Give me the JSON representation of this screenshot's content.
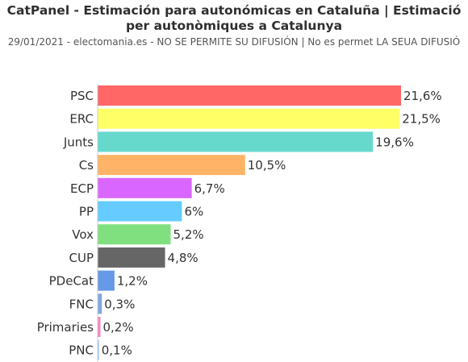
{
  "title": "CatPanel - Estimación para autonómicas en Cataluña | Estimació per autonòmiques a Catalunya",
  "subtitle": "29/01/2021 - electomania.es - NO SE PERMITE SU DIFUSIÓN | No es permet LA SEUA DIFUSIÓ",
  "chart_data": {
    "type": "bar",
    "orientation": "horizontal",
    "title": "CatPanel - Estimación para autonómicas en Cataluña | Estimació per autonòmiques a Catalunya",
    "categories": [
      "PSC",
      "ERC",
      "Junts",
      "Cs",
      "ECP",
      "PP",
      "Vox",
      "CUP",
      "PDeCat",
      "FNC",
      "Primaries",
      "PNC"
    ],
    "values": [
      21.6,
      21.5,
      19.6,
      10.5,
      6.7,
      6,
      5.2,
      4.8,
      1.2,
      0.3,
      0.2,
      0.1
    ],
    "value_labels": [
      "21,6%",
      "21,5%",
      "19,6%",
      "10,5%",
      "6,7%",
      "6%",
      "5,2%",
      "4,8%",
      "1,2%",
      "0,3%",
      "0,2%",
      "0,1%"
    ],
    "colors": [
      "#ff6666",
      "#ffff66",
      "#66d9cc",
      "#ffb366",
      "#d966ff",
      "#66ccff",
      "#80e080",
      "#666666",
      "#6699e6",
      "#80a6e6",
      "#ff80c0",
      "#99ccff"
    ],
    "xlim": [
      0,
      21.6
    ],
    "grid": false,
    "legend": "none"
  }
}
